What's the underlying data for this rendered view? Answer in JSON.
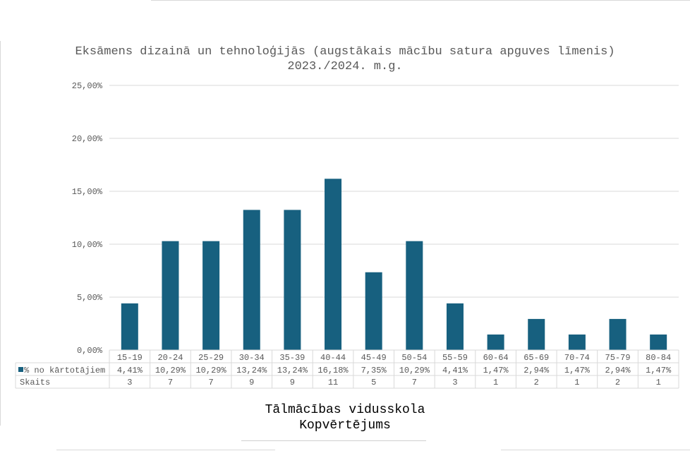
{
  "chart_data": {
    "type": "bar",
    "title": "Eksāmens dizainā un tehnoloģijās (augstākais mācību satura apguves līmenis) 2023./2024. m.g.",
    "categories": [
      "15-19",
      "20-24",
      "25-29",
      "30-34",
      "35-39",
      "40-44",
      "45-49",
      "50-54",
      "55-59",
      "60-64",
      "65-69",
      "70-74",
      "75-79",
      "80-84"
    ],
    "series": [
      {
        "name": "% no kārtotājiem",
        "values": [
          4.41,
          10.29,
          10.29,
          13.24,
          13.24,
          16.18,
          7.35,
          10.29,
          4.41,
          1.47,
          2.94,
          1.47,
          2.94,
          1.47
        ],
        "labels": [
          "4,41%",
          "10,29%",
          "10,29%",
          "13,24%",
          "13,24%",
          "16,18%",
          "7,35%",
          "10,29%",
          "4,41%",
          "1,47%",
          "2,94%",
          "1,47%",
          "2,94%",
          "1,47%"
        ],
        "color": "#17607F"
      }
    ],
    "table_rows": [
      {
        "name": "Skaits",
        "values": [
          "3",
          "7",
          "7",
          "9",
          "9",
          "11",
          "5",
          "7",
          "3",
          "1",
          "2",
          "1",
          "2",
          "1"
        ]
      }
    ],
    "ylim": [
      0,
      25
    ],
    "yticks": [
      0,
      5,
      10,
      15,
      20,
      25
    ],
    "ytick_labels": [
      "0,00%",
      "5,00%",
      "10,00%",
      "15,00%",
      "20,00%",
      "25,00%"
    ],
    "grid": true,
    "xlabel": "",
    "ylabel": ""
  },
  "footer": {
    "line1": "Tālmācības vidusskola",
    "line2": "Kopvērtējums"
  },
  "colors": {
    "bar": "#17607F",
    "grid": "#d9d9d9",
    "text": "#595959"
  }
}
